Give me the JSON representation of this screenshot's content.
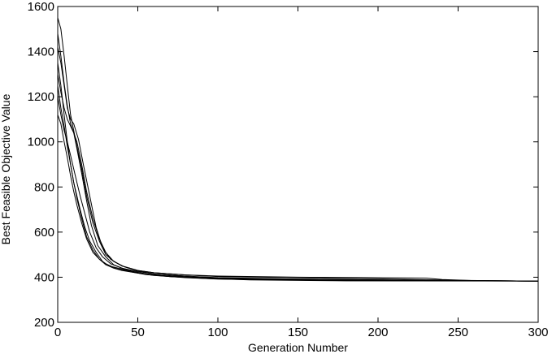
{
  "chart_data": {
    "type": "line",
    "title": "",
    "xlabel": "Generation Number",
    "ylabel": "Best Feasible Objective Value",
    "xlim": [
      0,
      300
    ],
    "ylim": [
      200,
      1600
    ],
    "xticks": [
      0,
      50,
      100,
      150,
      200,
      250,
      300
    ],
    "yticks": [
      200,
      400,
      600,
      800,
      1000,
      1200,
      1400,
      1600
    ],
    "grid": false,
    "legend": "none",
    "line_color": "#000000",
    "series": [
      {
        "x": [
          0,
          2,
          4,
          6,
          8,
          10,
          12,
          15,
          18,
          22,
          26,
          30,
          35,
          40,
          50,
          60,
          80,
          100,
          150,
          200,
          230,
          240,
          260,
          300
        ],
        "y": [
          1550,
          1500,
          1380,
          1250,
          1120,
          1050,
          980,
          880,
          760,
          640,
          560,
          500,
          470,
          450,
          430,
          420,
          410,
          405,
          400,
          398,
          396,
          390,
          385,
          383
        ]
      },
      {
        "x": [
          0,
          2,
          4,
          6,
          8,
          10,
          13,
          16,
          20,
          24,
          28,
          33,
          40,
          50,
          60,
          80,
          100,
          150,
          200,
          250,
          300
        ],
        "y": [
          1420,
          1350,
          1250,
          1150,
          1100,
          1080,
          1010,
          900,
          760,
          620,
          530,
          480,
          450,
          430,
          420,
          410,
          403,
          398,
          393,
          386,
          383
        ]
      },
      {
        "x": [
          0,
          2,
          4,
          6,
          8,
          10,
          12,
          15,
          18,
          21,
          25,
          30,
          35,
          42,
          50,
          60,
          80,
          100,
          150,
          200,
          300
        ],
        "y": [
          1300,
          1220,
          1150,
          1100,
          1070,
          1040,
          970,
          860,
          740,
          630,
          540,
          490,
          455,
          435,
          420,
          410,
          400,
          396,
          392,
          388,
          383
        ]
      },
      {
        "x": [
          0,
          2,
          4,
          6,
          8,
          10,
          12,
          14,
          17,
          20,
          24,
          28,
          33,
          40,
          50,
          60,
          80,
          100,
          150,
          200,
          300
        ],
        "y": [
          1200,
          1120,
          1050,
          1000,
          940,
          880,
          820,
          760,
          680,
          600,
          530,
          490,
          460,
          440,
          425,
          415,
          405,
          398,
          392,
          388,
          383
        ]
      },
      {
        "x": [
          0,
          2,
          4,
          6,
          8,
          10,
          12,
          15,
          18,
          22,
          26,
          30,
          36,
          45,
          55,
          70,
          90,
          120,
          180,
          300
        ],
        "y": [
          1120,
          1080,
          1000,
          930,
          850,
          780,
          720,
          640,
          570,
          510,
          480,
          460,
          440,
          425,
          412,
          403,
          396,
          390,
          385,
          383
        ]
      },
      {
        "x": [
          0,
          2,
          4,
          6,
          8,
          10,
          12,
          15,
          18,
          22,
          26,
          30,
          35,
          40,
          50,
          60,
          80,
          100,
          150,
          300
        ],
        "y": [
          1250,
          1150,
          1070,
          980,
          900,
          820,
          750,
          660,
          580,
          520,
          480,
          455,
          440,
          430,
          418,
          408,
          398,
          392,
          387,
          383
        ]
      },
      {
        "x": [
          0,
          2,
          4,
          6,
          8,
          10,
          12,
          14,
          17,
          20,
          24,
          28,
          32,
          38,
          45,
          55,
          70,
          90,
          120,
          180,
          300
        ],
        "y": [
          1350,
          1250,
          1120,
          1000,
          900,
          820,
          760,
          700,
          620,
          560,
          510,
          470,
          450,
          440,
          428,
          415,
          403,
          395,
          388,
          384,
          383
        ]
      },
      {
        "x": [
          0,
          2,
          4,
          6,
          8,
          10,
          12,
          15,
          18,
          22,
          26,
          30,
          35,
          42,
          50,
          60,
          80,
          100,
          150,
          300
        ],
        "y": [
          1480,
          1380,
          1260,
          1160,
          1080,
          1040,
          1000,
          900,
          780,
          660,
          570,
          510,
          470,
          445,
          428,
          415,
          402,
          395,
          389,
          383
        ]
      }
    ]
  }
}
